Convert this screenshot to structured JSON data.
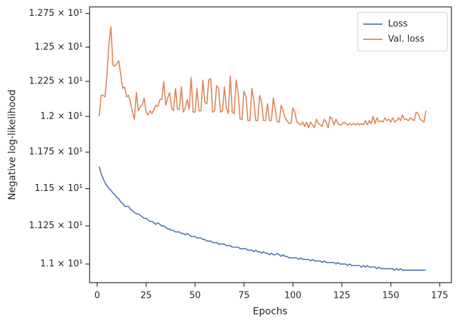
{
  "chart_data": {
    "type": "line",
    "xlabel": "Epochs",
    "ylabel": "Negative log-likelihood",
    "yscale": "log",
    "grid": false,
    "legend": "upper right",
    "xlim": [
      -3.9,
      181
    ],
    "xticks": [
      0,
      25,
      50,
      75,
      100,
      125,
      150,
      175
    ],
    "ylim": [
      10.88,
      12.8
    ],
    "yticks": [
      {
        "value": 11.0,
        "label": "1.1 × 10¹"
      },
      {
        "value": 11.25,
        "label": "1.125 × 10¹"
      },
      {
        "value": 11.5,
        "label": "1.15 × 10¹"
      },
      {
        "value": 11.75,
        "label": "1.175 × 10¹"
      },
      {
        "value": 12.0,
        "label": "1.2 × 10¹"
      },
      {
        "value": 12.25,
        "label": "1.225 × 10¹"
      },
      {
        "value": 12.5,
        "label": "1.25 × 10¹"
      },
      {
        "value": 12.75,
        "label": "1.275 × 10¹"
      }
    ],
    "x": [
      1,
      2,
      3,
      4,
      5,
      6,
      7,
      8,
      9,
      10,
      11,
      12,
      13,
      14,
      15,
      16,
      17,
      18,
      19,
      20,
      21,
      22,
      23,
      24,
      25,
      26,
      27,
      28,
      29,
      30,
      31,
      32,
      33,
      34,
      35,
      36,
      37,
      38,
      39,
      40,
      41,
      42,
      43,
      44,
      45,
      46,
      47,
      48,
      49,
      50,
      51,
      52,
      53,
      54,
      55,
      56,
      57,
      58,
      59,
      60,
      61,
      62,
      63,
      64,
      65,
      66,
      67,
      68,
      69,
      70,
      71,
      72,
      73,
      74,
      75,
      76,
      77,
      78,
      79,
      80,
      81,
      82,
      83,
      84,
      85,
      86,
      87,
      88,
      89,
      90,
      91,
      92,
      93,
      94,
      95,
      96,
      97,
      98,
      99,
      100,
      101,
      102,
      103,
      104,
      105,
      106,
      107,
      108,
      109,
      110,
      111,
      112,
      113,
      114,
      115,
      116,
      117,
      118,
      119,
      120,
      121,
      122,
      123,
      124,
      125,
      126,
      127,
      128,
      129,
      130,
      131,
      132,
      133,
      134,
      135,
      136,
      137,
      138,
      139,
      140,
      141,
      142,
      143,
      144,
      145,
      146,
      147,
      148,
      149,
      150,
      151,
      152,
      153,
      154,
      155,
      156,
      157,
      158,
      159,
      160,
      161,
      162,
      163,
      164,
      165,
      166,
      167,
      168
    ],
    "series": [
      {
        "name": "Loss",
        "color": "#4c72b0",
        "values": [
          11.65,
          11.6,
          11.57,
          11.54,
          11.52,
          11.5,
          11.49,
          11.47,
          11.46,
          11.44,
          11.43,
          11.41,
          11.4,
          11.38,
          11.38,
          11.38,
          11.36,
          11.35,
          11.34,
          11.33,
          11.33,
          11.32,
          11.31,
          11.3,
          11.3,
          11.29,
          11.28,
          11.28,
          11.27,
          11.26,
          11.27,
          11.26,
          11.25,
          11.25,
          11.24,
          11.23,
          11.23,
          11.22,
          11.22,
          11.21,
          11.21,
          11.21,
          11.2,
          11.2,
          11.19,
          11.2,
          11.19,
          11.18,
          11.18,
          11.18,
          11.17,
          11.17,
          11.17,
          11.16,
          11.16,
          11.15,
          11.15,
          11.15,
          11.14,
          11.14,
          11.14,
          11.13,
          11.13,
          11.13,
          11.13,
          11.12,
          11.12,
          11.12,
          11.11,
          11.11,
          11.11,
          11.11,
          11.1,
          11.1,
          11.1,
          11.1,
          11.09,
          11.09,
          11.09,
          11.08,
          11.09,
          11.08,
          11.08,
          11.07,
          11.08,
          11.07,
          11.07,
          11.06,
          11.07,
          11.06,
          11.06,
          11.07,
          11.06,
          11.05,
          11.06,
          11.05,
          11.05,
          11.04,
          11.04,
          11.04,
          11.04,
          11.04,
          11.03,
          11.04,
          11.03,
          11.03,
          11.03,
          11.03,
          11.02,
          11.03,
          11.02,
          11.02,
          11.02,
          11.02,
          11.01,
          11.02,
          11.01,
          11.01,
          11.01,
          11.01,
          11.01,
          11.0,
          11.01,
          11.0,
          11.0,
          11.0,
          11.0,
          10.99,
          11.0,
          10.99,
          10.99,
          10.99,
          10.99,
          10.99,
          10.98,
          10.99,
          10.98,
          10.99,
          10.98,
          10.98,
          10.98,
          10.98,
          10.97,
          10.98,
          10.97,
          10.97,
          10.97,
          10.97,
          10.97,
          10.97,
          10.97,
          10.96,
          10.97,
          10.96,
          10.97,
          10.96,
          10.96,
          10.96,
          10.96,
          10.96,
          10.96,
          10.96,
          10.96,
          10.96,
          10.96,
          10.96,
          10.96,
          10.96
        ]
      },
      {
        "name": "Val. loss",
        "color": "#dd8452",
        "values": [
          12.0,
          12.15,
          12.15,
          12.14,
          12.3,
          12.53,
          12.65,
          12.37,
          12.36,
          12.38,
          12.4,
          12.3,
          12.2,
          12.21,
          12.14,
          12.15,
          12.1,
          12.03,
          11.98,
          12.17,
          12.04,
          12.07,
          12.08,
          12.13,
          12.03,
          12.01,
          12.04,
          12.02,
          12.05,
          12.08,
          12.07,
          12.12,
          12.12,
          12.25,
          12.08,
          12.13,
          12.17,
          12.06,
          12.04,
          12.2,
          12.05,
          12.05,
          12.21,
          12.03,
          12.06,
          12.12,
          12.05,
          12.28,
          12.03,
          12.03,
          12.2,
          12.04,
          12.04,
          12.26,
          12.1,
          12.09,
          12.26,
          12.27,
          12.03,
          12.04,
          12.22,
          12.2,
          12.03,
          12.04,
          12.21,
          12.06,
          12.02,
          12.29,
          12.03,
          12.02,
          12.26,
          12.17,
          11.98,
          11.98,
          12.18,
          12.14,
          11.97,
          11.97,
          12.2,
          12.12,
          11.97,
          11.97,
          12.15,
          12.1,
          11.97,
          11.97,
          12.09,
          11.97,
          11.97,
          12.13,
          12.05,
          11.96,
          11.96,
          12.08,
          12.04,
          11.99,
          11.97,
          11.95,
          11.95,
          12.06,
          12.03,
          11.96,
          11.95,
          11.94,
          11.96,
          11.93,
          11.96,
          11.92,
          11.96,
          11.94,
          11.92,
          11.98,
          11.95,
          11.94,
          11.93,
          11.98,
          11.96,
          11.92,
          12.0,
          11.98,
          11.94,
          11.98,
          11.95,
          11.94,
          11.94,
          11.96,
          11.95,
          11.94,
          11.95,
          11.94,
          11.95,
          11.94,
          11.95,
          11.94,
          11.95,
          11.94,
          11.97,
          11.94,
          11.97,
          11.95,
          12.0,
          11.95,
          11.99,
          11.96,
          11.97,
          11.96,
          11.99,
          11.97,
          11.98,
          11.96,
          11.99,
          11.96,
          11.97,
          11.99,
          11.97,
          12.01,
          11.98,
          11.98,
          11.97,
          11.99,
          11.98,
          11.97,
          12.03,
          12.02,
          11.98,
          11.97,
          11.96,
          12.04
        ]
      }
    ]
  }
}
